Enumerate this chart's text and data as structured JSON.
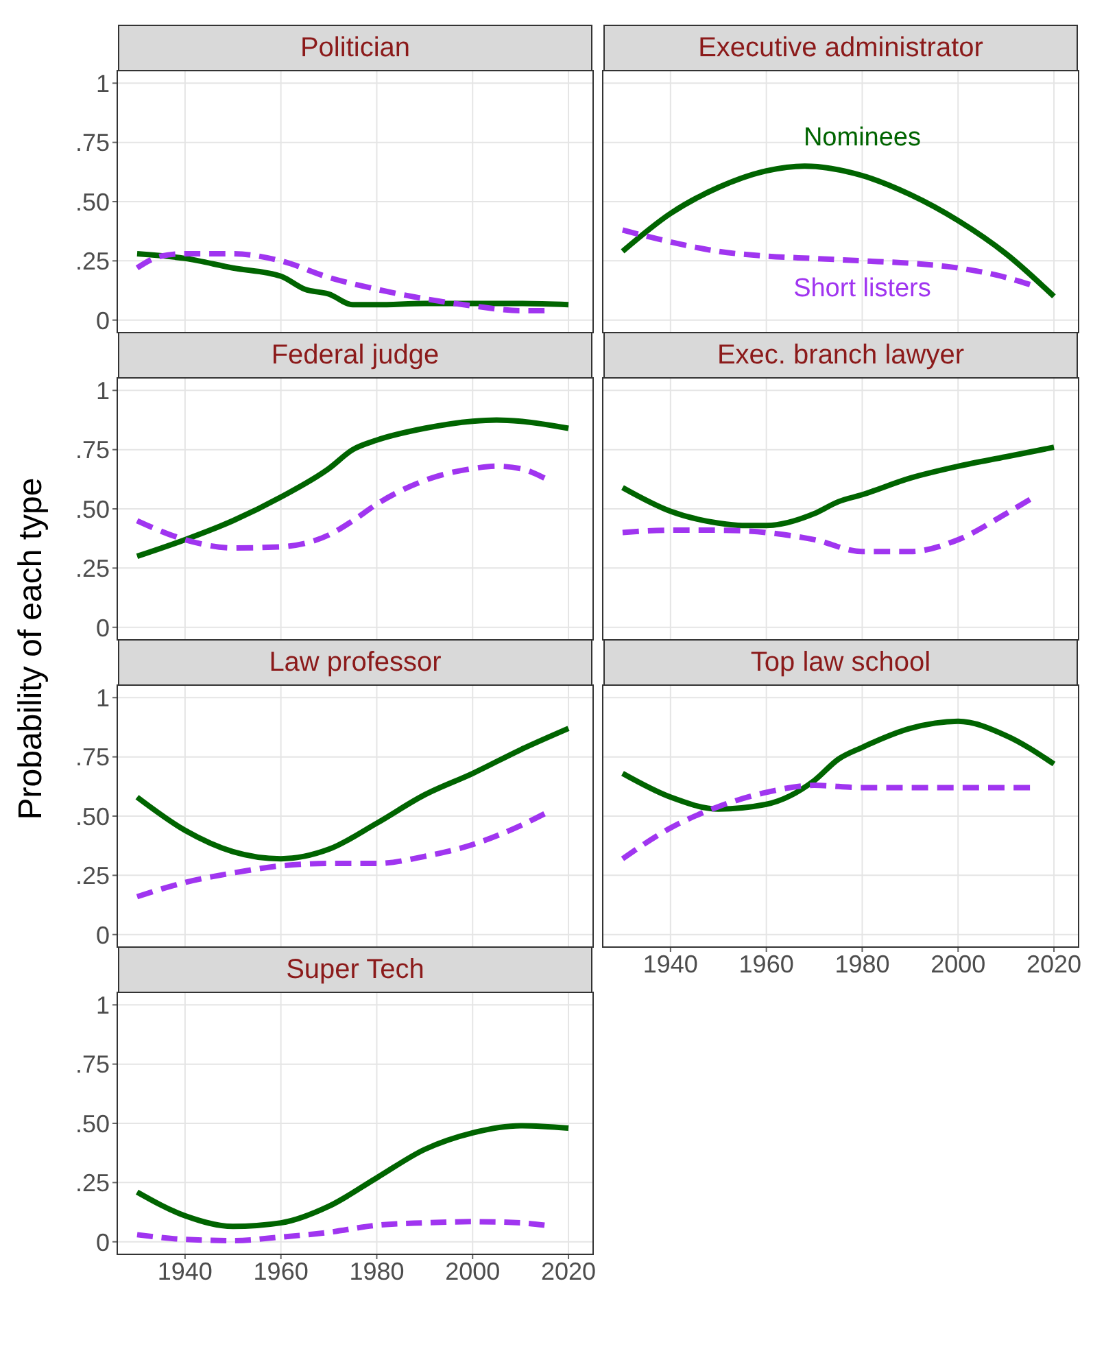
{
  "chart_data": [
    {
      "type": "line",
      "title": "Politician",
      "xlim": [
        1926,
        2025
      ],
      "xticks": [
        1940,
        1960,
        1980,
        2000,
        2020
      ],
      "ylim": [
        -0.05,
        1.05
      ],
      "yticks": [
        0,
        {
          "value": 0.25,
          "label": ".25"
        },
        {
          "value": 0.5,
          "label": ".50"
        },
        {
          "value": 0.75,
          "label": ".75"
        },
        1
      ],
      "grid": true,
      "tick_labels": "y",
      "legend": false,
      "series": [
        {
          "color": "#006400",
          "line_style": "solid",
          "x": [
            1930,
            1940,
            1950,
            1960,
            1965,
            1970,
            1975,
            1980,
            1990,
            2000,
            2010,
            2020
          ],
          "values": [
            0.28,
            0.26,
            0.22,
            0.185,
            0.13,
            0.11,
            0.065,
            0.065,
            0.07,
            0.07,
            0.07,
            0.065
          ]
        },
        {
          "color": "#a035f0",
          "line_style": "dashed",
          "x": [
            1930,
            1935,
            1940,
            1950,
            1960,
            1970,
            1980,
            1990,
            2000,
            2010,
            2015
          ],
          "values": [
            0.22,
            0.27,
            0.28,
            0.28,
            0.25,
            0.18,
            0.13,
            0.09,
            0.06,
            0.04,
            0.04
          ]
        }
      ]
    },
    {
      "type": "line",
      "title": "Executive administrator",
      "xlim": [
        1926,
        2025
      ],
      "xticks": [
        1940,
        1960,
        1980,
        2000,
        2020
      ],
      "ylim": [
        -0.05,
        1.05
      ],
      "yticks": [
        0,
        0.25,
        0.5,
        0.75,
        1
      ],
      "grid": true,
      "tick_labels": false,
      "legend": false,
      "series": [
        {
          "name": "Nominees",
          "color": "#006400",
          "line_style": "solid",
          "x": [
            1930,
            1940,
            1950,
            1960,
            1968,
            1980,
            1990,
            2000,
            2010,
            2020
          ],
          "values": [
            0.29,
            0.45,
            0.56,
            0.63,
            0.65,
            0.61,
            0.53,
            0.42,
            0.28,
            0.1
          ]
        },
        {
          "name": "Short listers",
          "color": "#a035f0",
          "line_style": "dashed",
          "x": [
            1930,
            1940,
            1950,
            1960,
            1970,
            1980,
            1990,
            2000,
            2010,
            2015
          ],
          "values": [
            0.38,
            0.33,
            0.29,
            0.27,
            0.26,
            0.25,
            0.24,
            0.22,
            0.18,
            0.15
          ]
        }
      ]
    },
    {
      "type": "line",
      "title": "Federal judge",
      "xlim": [
        1926,
        2025
      ],
      "xticks": [
        1940,
        1960,
        1980,
        2000,
        2020
      ],
      "ylim": [
        -0.05,
        1.05
      ],
      "yticks": [
        0,
        {
          "value": 0.25,
          "label": ".25"
        },
        {
          "value": 0.5,
          "label": ".50"
        },
        {
          "value": 0.75,
          "label": ".75"
        },
        1
      ],
      "grid": true,
      "tick_labels": "y",
      "legend": false,
      "series": [
        {
          "color": "#006400",
          "line_style": "solid",
          "x": [
            1930,
            1940,
            1950,
            1960,
            1970,
            1975,
            1980,
            1990,
            2000,
            2005,
            2010,
            2020
          ],
          "values": [
            0.3,
            0.37,
            0.45,
            0.55,
            0.67,
            0.75,
            0.79,
            0.84,
            0.87,
            0.875,
            0.87,
            0.84
          ]
        },
        {
          "color": "#a035f0",
          "line_style": "dashed",
          "x": [
            1930,
            1940,
            1950,
            1960,
            1970,
            1975,
            1980,
            1990,
            2000,
            2005,
            2010,
            2015
          ],
          "values": [
            0.45,
            0.37,
            0.335,
            0.34,
            0.39,
            0.45,
            0.52,
            0.62,
            0.67,
            0.68,
            0.67,
            0.63
          ]
        }
      ]
    },
    {
      "type": "line",
      "title": "Exec. branch lawyer",
      "xlim": [
        1926,
        2025
      ],
      "xticks": [
        1940,
        1960,
        1980,
        2000,
        2020
      ],
      "ylim": [
        -0.05,
        1.05
      ],
      "yticks": [
        0,
        0.25,
        0.5,
        0.75,
        1
      ],
      "grid": true,
      "tick_labels": false,
      "legend": false,
      "series": [
        {
          "color": "#006400",
          "line_style": "solid",
          "x": [
            1930,
            1940,
            1950,
            1955,
            1960,
            1970,
            1975,
            1980,
            1990,
            2000,
            2010,
            2020
          ],
          "values": [
            0.59,
            0.49,
            0.44,
            0.43,
            0.43,
            0.48,
            0.53,
            0.56,
            0.63,
            0.68,
            0.72,
            0.76
          ]
        },
        {
          "color": "#a035f0",
          "line_style": "dashed",
          "x": [
            1930,
            1940,
            1950,
            1960,
            1970,
            1980,
            1990,
            2000,
            2010,
            2015
          ],
          "values": [
            0.4,
            0.41,
            0.41,
            0.4,
            0.37,
            0.32,
            0.32,
            0.37,
            0.48,
            0.54
          ]
        }
      ]
    },
    {
      "type": "line",
      "title": "Law professor",
      "ylabel": "Probability of each type",
      "xlim": [
        1926,
        2025
      ],
      "xticks": [
        1940,
        1960,
        1980,
        2000,
        2020
      ],
      "ylim": [
        -0.05,
        1.05
      ],
      "yticks": [
        0,
        {
          "value": 0.25,
          "label": ".25"
        },
        {
          "value": 0.5,
          "label": ".50"
        },
        {
          "value": 0.75,
          "label": ".75"
        },
        1
      ],
      "grid": true,
      "tick_labels": "y",
      "legend": false,
      "series": [
        {
          "color": "#006400",
          "line_style": "solid",
          "x": [
            1930,
            1940,
            1950,
            1960,
            1970,
            1980,
            1990,
            2000,
            2010,
            2020
          ],
          "values": [
            0.58,
            0.44,
            0.35,
            0.32,
            0.36,
            0.47,
            0.59,
            0.68,
            0.78,
            0.87
          ]
        },
        {
          "color": "#a035f0",
          "line_style": "dashed",
          "x": [
            1930,
            1940,
            1950,
            1960,
            1970,
            1980,
            1990,
            2000,
            2010,
            2015
          ],
          "values": [
            0.16,
            0.22,
            0.26,
            0.29,
            0.3,
            0.3,
            0.33,
            0.38,
            0.46,
            0.51
          ]
        }
      ]
    },
    {
      "type": "line",
      "title": "Top law school",
      "xlim": [
        1926,
        2025
      ],
      "xticks": [
        1940,
        1960,
        1980,
        2000,
        2020
      ],
      "ylim": [
        -0.05,
        1.05
      ],
      "yticks": [
        0,
        0.25,
        0.5,
        0.75,
        1
      ],
      "grid": true,
      "tick_labels": "x",
      "legend": false,
      "series": [
        {
          "color": "#006400",
          "line_style": "solid",
          "x": [
            1930,
            1940,
            1950,
            1960,
            1970,
            1975,
            1980,
            1990,
            2000,
            2010,
            2020
          ],
          "values": [
            0.68,
            0.58,
            0.53,
            0.55,
            0.65,
            0.74,
            0.79,
            0.87,
            0.9,
            0.84,
            0.72
          ]
        },
        {
          "color": "#a035f0",
          "line_style": "dashed",
          "x": [
            1930,
            1940,
            1950,
            1960,
            1970,
            1980,
            1990,
            2000,
            2010,
            2015
          ],
          "values": [
            0.32,
            0.45,
            0.54,
            0.6,
            0.63,
            0.62,
            0.62,
            0.62,
            0.62,
            0.62
          ]
        }
      ]
    },
    {
      "type": "line",
      "title": "Super Tech",
      "xlim": [
        1926,
        2025
      ],
      "xticks": [
        1940,
        1960,
        1980,
        2000,
        2020
      ],
      "ylim": [
        -0.05,
        1.05
      ],
      "yticks": [
        0,
        {
          "value": 0.25,
          "label": ".25"
        },
        {
          "value": 0.5,
          "label": ".50"
        },
        {
          "value": 0.75,
          "label": ".75"
        },
        1
      ],
      "grid": true,
      "legend": false,
      "series": [
        {
          "color": "#006400",
          "line_style": "solid",
          "x": [
            1930,
            1940,
            1950,
            1960,
            1970,
            1980,
            1990,
            2000,
            2010,
            2020
          ],
          "values": [
            0.21,
            0.11,
            0.065,
            0.08,
            0.15,
            0.27,
            0.39,
            0.46,
            0.49,
            0.48
          ]
        },
        {
          "color": "#a035f0",
          "line_style": "dashed",
          "x": [
            1930,
            1940,
            1950,
            1960,
            1970,
            1980,
            1990,
            2000,
            2010,
            2015
          ],
          "values": [
            0.03,
            0.01,
            0.005,
            0.02,
            0.04,
            0.07,
            0.08,
            0.085,
            0.08,
            0.07
          ]
        }
      ]
    }
  ]
}
